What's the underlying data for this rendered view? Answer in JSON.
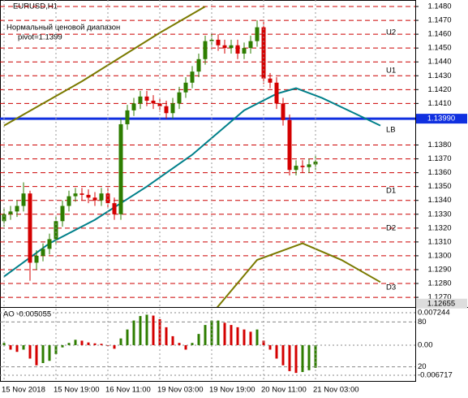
{
  "chart_data": {
    "type": "candlestick",
    "symbol": "EURUSD,H1",
    "indicator_name": "Нормальный ценовой диапазон",
    "pivot_text": "pivot=1.1399",
    "open": [
      1.1325,
      1.133,
      1.1332,
      1.1336,
      1.1345,
      1.1295,
      1.13,
      1.1305,
      1.1312,
      1.1325,
      1.1336,
      1.1343,
      1.1345,
      1.1344,
      1.1342,
      1.134,
      1.1345,
      1.1338,
      1.133,
      1.1395,
      1.1405,
      1.141,
      1.1415,
      1.1412,
      1.141,
      1.1408,
      1.1403,
      1.141,
      1.1418,
      1.1425,
      1.1433,
      1.1442,
      1.1455,
      1.1456,
      1.1452,
      1.145,
      1.1452,
      1.1446,
      1.145,
      1.1455,
      1.1465,
      1.1428,
      1.1425,
      1.141,
      1.1398,
      1.1362,
      1.1365,
      1.1364,
      1.1366
    ],
    "high": [
      1.1334,
      1.1336,
      1.134,
      1.1353,
      1.1347,
      1.1304,
      1.1309,
      1.1316,
      1.1329,
      1.134,
      1.1347,
      1.1349,
      1.1349,
      1.1348,
      1.1346,
      1.1349,
      1.1349,
      1.1342,
      1.1399,
      1.1409,
      1.1414,
      1.1419,
      1.1419,
      1.1416,
      1.1414,
      1.1412,
      1.1414,
      1.1422,
      1.1429,
      1.1437,
      1.1446,
      1.1459,
      1.146,
      1.146,
      1.1456,
      1.1456,
      1.1456,
      1.1454,
      1.1459,
      1.147,
      1.1469,
      1.1432,
      1.1429,
      1.1414,
      1.1402,
      1.1369,
      1.1369,
      1.137,
      1.1372
    ],
    "low": [
      1.1321,
      1.1326,
      1.1328,
      1.1332,
      1.1282,
      1.129,
      1.1296,
      1.1301,
      1.1308,
      1.1321,
      1.1332,
      1.1339,
      1.134,
      1.1338,
      1.1336,
      1.1336,
      1.1334,
      1.1326,
      1.1326,
      1.1391,
      1.1401,
      1.1406,
      1.1408,
      1.1406,
      1.1404,
      1.1399,
      1.1399,
      1.1406,
      1.1414,
      1.1421,
      1.1429,
      1.1438,
      1.1451,
      1.1448,
      1.1446,
      1.1446,
      1.1442,
      1.1442,
      1.1446,
      1.1451,
      1.1424,
      1.1421,
      1.1406,
      1.1394,
      1.1358,
      1.1358,
      1.136,
      1.136,
      1.1362
    ],
    "close": [
      1.133,
      1.1332,
      1.1336,
      1.1345,
      1.1295,
      1.13,
      1.1305,
      1.1312,
      1.1325,
      1.1336,
      1.1343,
      1.1345,
      1.1344,
      1.1342,
      1.134,
      1.1345,
      1.1338,
      1.133,
      1.1395,
      1.1405,
      1.141,
      1.1415,
      1.1412,
      1.141,
      1.1408,
      1.1403,
      1.141,
      1.1418,
      1.1425,
      1.1433,
      1.1442,
      1.1455,
      1.1456,
      1.1452,
      1.145,
      1.1452,
      1.1446,
      1.145,
      1.1455,
      1.1465,
      1.1428,
      1.1425,
      1.141,
      1.1398,
      1.1362,
      1.1365,
      1.1364,
      1.1366,
      1.1368
    ],
    "bull_color": "#2e7d00",
    "bear_color": "#d40000",
    "xlim": [
      -0.625,
      63.375
    ],
    "xticks": [
      {
        "value": 0,
        "label": "15 Nov 2018"
      },
      {
        "value": 8,
        "label": "15 Nov 19:00"
      },
      {
        "value": 16,
        "label": "16 Nov 11:00"
      },
      {
        "value": 24,
        "label": "19 Nov 03:00"
      },
      {
        "value": 32,
        "label": "19 Nov 19:00"
      },
      {
        "value": 40,
        "label": "20 Nov 11:00"
      },
      {
        "value": 48,
        "label": "21 Nov 03:00"
      }
    ],
    "ylim": [
      1.1263,
      1.14847
    ],
    "yticks": [
      {
        "value": 1.148,
        "label": "1.1480"
      },
      {
        "value": 1.147,
        "label": "1.1470"
      },
      {
        "value": 1.146,
        "label": "1.1460"
      },
      {
        "value": 1.145,
        "label": "1.1450"
      },
      {
        "value": 1.144,
        "label": "1.1440"
      },
      {
        "value": 1.143,
        "label": "1.1430"
      },
      {
        "value": 1.142,
        "label": "1.1420"
      },
      {
        "value": 1.141,
        "label": "1.1410"
      },
      {
        "value": 1.138,
        "label": "1.1380"
      },
      {
        "value": 1.137,
        "label": "1.1370"
      },
      {
        "value": 1.136,
        "label": "1.1360"
      },
      {
        "value": 1.135,
        "label": "1.1350"
      },
      {
        "value": 1.134,
        "label": "1.1340"
      },
      {
        "value": 1.133,
        "label": "1.1330"
      },
      {
        "value": 1.132,
        "label": "1.1320"
      },
      {
        "value": 1.131,
        "label": "1.1310"
      },
      {
        "value": 1.13,
        "label": "1.1300"
      },
      {
        "value": 1.129,
        "label": "1.1290"
      },
      {
        "value": 1.128,
        "label": "1.1280"
      },
      {
        "value": 1.127,
        "label": "1.1270"
      }
    ],
    "grid": true,
    "grid_color": "#cc0000",
    "pivot": {
      "value": 1.1399,
      "label": "1.13990",
      "color": "#1030e0"
    },
    "bottom_marker": {
      "value": 1.12655,
      "label": "1.12655"
    },
    "levels": [
      {
        "label": "U2",
        "value": 1.14612
      },
      {
        "label": "U1",
        "value": 1.14337
      },
      {
        "label": "LB",
        "value": 1.13908
      },
      {
        "label": "D1",
        "value": 1.13468
      },
      {
        "label": "D2",
        "value": 1.13199
      },
      {
        "label": "D3",
        "value": 1.1277
      }
    ],
    "overlays": [
      {
        "color": "#00808a",
        "x": [
          0,
          7,
          14,
          22,
          29,
          37,
          42,
          45,
          49,
          58
        ],
        "values": [
          1.1285,
          1.1309,
          1.1326,
          1.135,
          1.1373,
          1.1405,
          1.1417,
          1.1421,
          1.1414,
          1.1394
        ]
      },
      {
        "color": "#7a7a00",
        "x": [
          0,
          12,
          24,
          31
        ],
        "values": [
          1.1394,
          1.1426,
          1.1461,
          1.148
        ]
      },
      {
        "color": "#7a7a00",
        "x": [
          32,
          39,
          46,
          52,
          58
        ],
        "values": [
          1.1258,
          1.1297,
          1.1309,
          1.1297,
          1.1281
        ]
      }
    ],
    "oscillator": {
      "title": "AO -0.005055",
      "values": [
        0.0005,
        -0.001,
        -0.0015,
        -0.001,
        -0.003,
        -0.0045,
        -0.004,
        -0.0035,
        -0.002,
        -0.0005,
        0.0005,
        0.0012,
        0.001,
        0.0006,
        0.0004,
        0.0003,
        -0.0002,
        -0.0008,
        0.0015,
        0.0035,
        0.0055,
        0.0065,
        0.0068,
        0.0066,
        0.0058,
        0.004,
        0.002,
        0.0005,
        -0.001,
        0.0005,
        0.0025,
        0.0045,
        0.0055,
        0.0055,
        0.005,
        0.0045,
        0.004,
        0.0035,
        0.003,
        0.0035,
        0.001,
        -0.001,
        -0.003,
        -0.0045,
        -0.0058,
        -0.0062,
        -0.006,
        -0.0056,
        -0.005055
      ],
      "up_color": "#2e7d00",
      "down_color": "#d40000",
      "ylim": [
        -0.00817,
        0.00851
      ],
      "yticks": [
        0.007244,
        {
          "value": 0,
          "label": "0.00"
        },
        -0.006717
      ],
      "y2lim": [
        0,
        100
      ],
      "y2ticks": [
        80,
        20
      ]
    }
  }
}
